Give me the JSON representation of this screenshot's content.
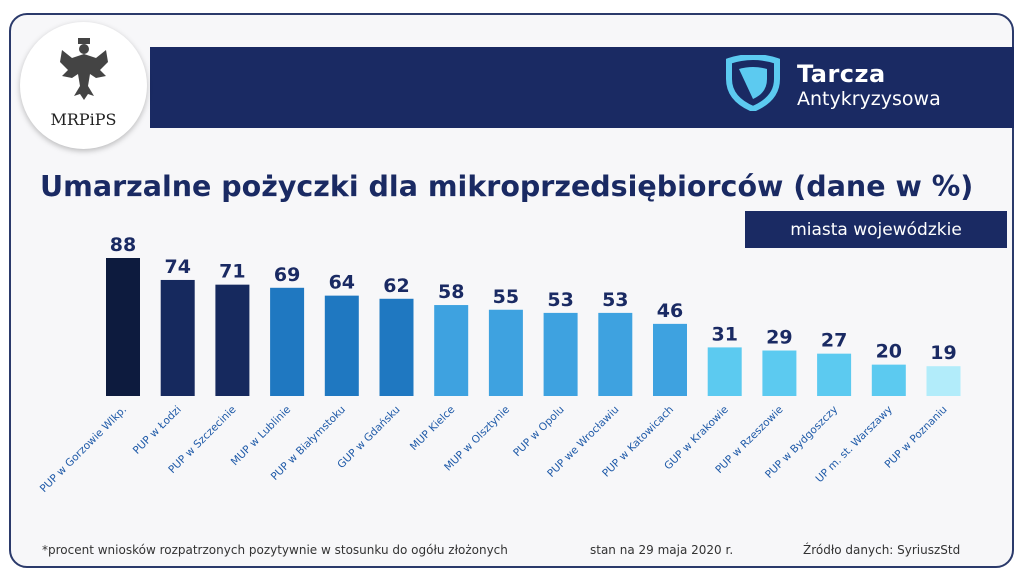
{
  "header": {
    "logo_text": "MRPiPS",
    "brand_title": "Tarcza",
    "brand_subtitle": "Antykryzysowa"
  },
  "chart_data": {
    "type": "bar",
    "title": "Umarzalne pożyczki dla mikroprzedsiębiorców (dane w %)",
    "subtitle": "miasta wojewódzkie",
    "categories": [
      "PUP w Gorzowie Wlkp.",
      "PUP w Łodzi",
      "PUP w Szczecinie",
      "MUP w Lublinie",
      "PUP w Białymstoku",
      "GUP w Gdańsku",
      "MUP Kielce",
      "MUP w Olsztynie",
      "PUP w Opolu",
      "PUP we Wrocławiu",
      "PUP w Katowicach",
      "GUP w Krakowie",
      "PUP w Rzeszowie",
      "PUP w Bydgoszczy",
      "UP m. st. Warszawy",
      "PUP w Poznaniu"
    ],
    "values": [
      88,
      74,
      71,
      69,
      64,
      62,
      58,
      55,
      53,
      53,
      46,
      31,
      29,
      27,
      20,
      19
    ],
    "value_labels": [
      "88",
      "74",
      "71",
      "69",
      "64",
      "62",
      "58",
      "55",
      "53",
      "53",
      "46",
      "31",
      "29",
      "27",
      "20",
      "19"
    ],
    "colors": [
      "#0d1b3e",
      "#16295e",
      "#16295e",
      "#1f78c1",
      "#1f78c1",
      "#1f78c1",
      "#3ea2e0",
      "#3ea2e0",
      "#3ea2e0",
      "#3ea2e0",
      "#3ea2e0",
      "#5ccaf0",
      "#5ccaf0",
      "#5ccaf0",
      "#5ccaf0",
      "#b2ecfa"
    ],
    "ylim": [
      0,
      88
    ],
    "grid": false,
    "legend": "none"
  },
  "footer": {
    "note": "*procent wniosków rozpatrzonych pozytywnie w stosunku do ogółu złożonych",
    "date": "stan na 29 maja 2020 r.",
    "source": "Źródło danych: SyriuszStd"
  }
}
